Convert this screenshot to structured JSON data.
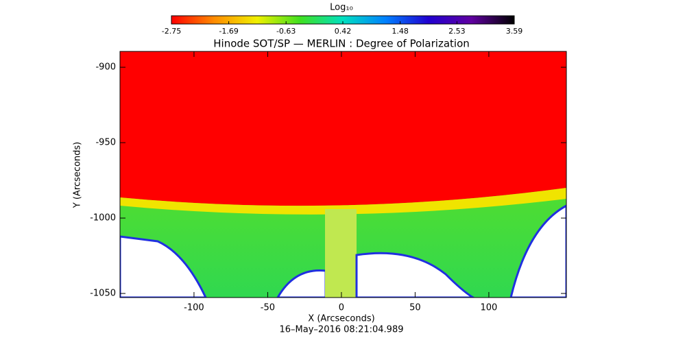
{
  "chart_data": {
    "type": "image",
    "title": "Hinode SOT/SP — MERLIN : Degree of Polarization",
    "xlabel": "X (Arcseconds)",
    "ylabel": "Y (Arcseconds)",
    "date": "16–May–2016 08:21:04.989",
    "xlim": [
      -150.2,
      152.6
    ],
    "ylim": [
      -1052.7,
      -889.5
    ],
    "xticks": [
      -100,
      -50,
      0,
      50,
      100
    ],
    "yticks": [
      -1050,
      -1000,
      -950,
      -900
    ],
    "colorbar": {
      "label": "Log₁₀",
      "lim": [
        -2.75,
        3.59
      ],
      "ticks": [
        -2.75,
        -1.69,
        -0.63,
        0.42,
        1.48,
        2.53,
        3.59
      ],
      "colors": [
        "#ff0000",
        "#ff8c00",
        "#f0f000",
        "#40e020",
        "#00e0c0",
        "#0080ff",
        "#2000d0",
        "#6000a0",
        "#000000"
      ]
    }
  }
}
